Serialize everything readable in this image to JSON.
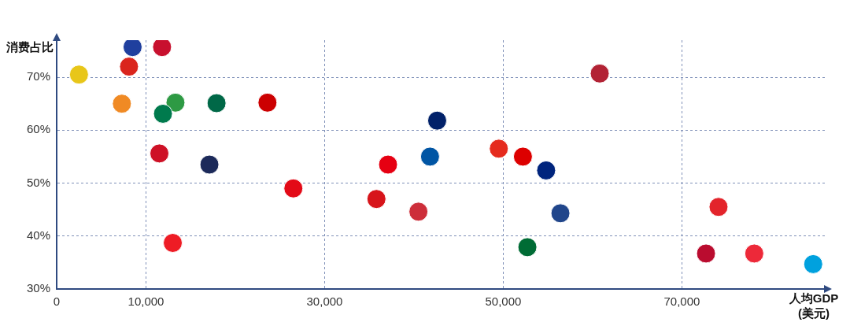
{
  "chart_data": {
    "type": "scatter",
    "xlabel": "人均GDP\n(美元)",
    "ylabel": "消费占比",
    "x": [
      2500,
      8500,
      8100,
      11800,
      7300,
      13300,
      11900,
      17900,
      11500,
      17100,
      13000,
      23600,
      26500,
      42600,
      41800,
      37100,
      35800,
      40500,
      49500,
      52200,
      54800,
      60800,
      56400,
      52700,
      74100,
      72700,
      78100,
      84700
    ],
    "values": [
      70.5,
      75.7,
      72.0,
      75.7,
      65.0,
      65.2,
      63.1,
      65.1,
      55.6,
      53.5,
      38.7,
      65.2,
      49.0,
      61.8,
      55.0,
      53.5,
      47.0,
      44.6,
      56.5,
      55.0,
      52.4,
      70.7,
      44.3,
      37.9,
      45.5,
      36.7,
      36.7,
      34.7
    ],
    "colors": [
      "#e8c619",
      "#1f3f9e",
      "#da251d",
      "#c8102e",
      "#f08a24",
      "#2e9a44",
      "#007a4d",
      "#006847",
      "#ce1126",
      "#1c2a5a",
      "#ee1c25",
      "#cc0001",
      "#e30a17",
      "#012169",
      "#0055a4",
      "#e60012",
      "#d7141a",
      "#cd2e3a",
      "#e52b1e",
      "#dd0000",
      "#00247d",
      "#b22234",
      "#21468b",
      "#006c35",
      "#e3242b",
      "#ba0c2f",
      "#ed2939",
      "#00a1de"
    ],
    "xlim": [
      0,
      86000
    ],
    "xticks": [
      0,
      {
        "value": 10000,
        "label": "10,000"
      },
      {
        "value": 30000,
        "label": "30,000"
      },
      {
        "value": 50000,
        "label": "50,000"
      },
      {
        "value": 70000,
        "label": "70,000"
      }
    ],
    "ylim": [
      30,
      77
    ],
    "yticks": [
      {
        "value": 30,
        "label": "30%"
      },
      {
        "value": 40,
        "label": "40%"
      },
      {
        "value": 50,
        "label": "50%"
      },
      {
        "value": 60,
        "label": "60%"
      },
      {
        "value": 70,
        "label": "70%"
      }
    ],
    "grid": true,
    "marker": "circle"
  }
}
